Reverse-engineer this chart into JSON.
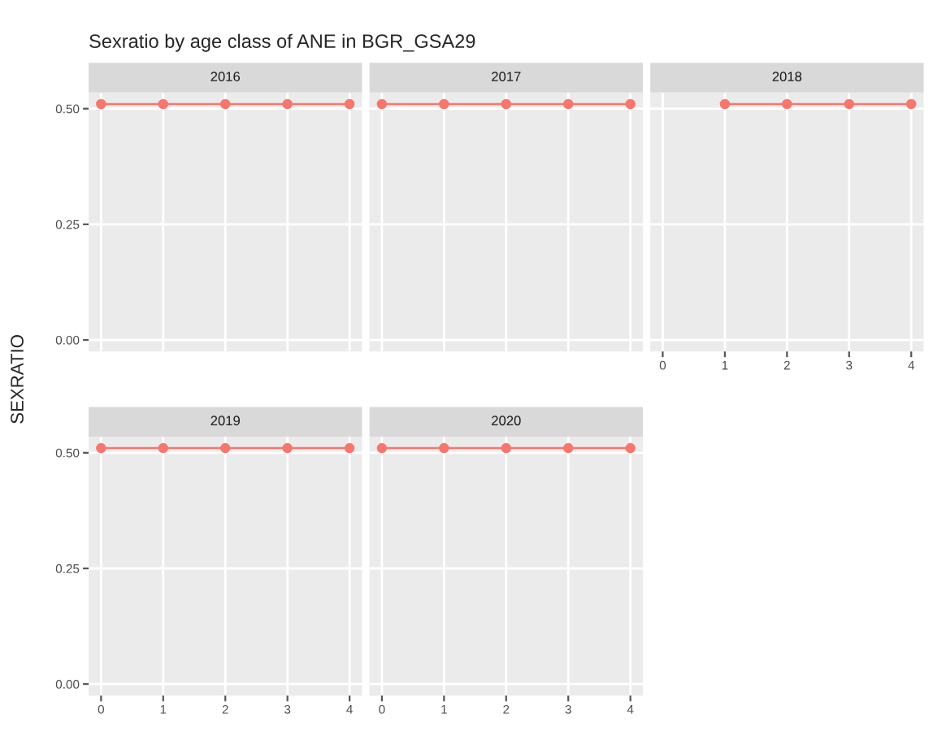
{
  "chart_data": [
    {
      "type": "line",
      "title": "Sexratio by age class of ANE in BGR_GSA29",
      "subtitle": "2016",
      "ylabel": "SEXRATIO",
      "x": [
        0,
        1,
        2,
        3,
        4
      ],
      "series": [
        {
          "color": "#f8766d",
          "values": [
            0.51,
            0.51,
            0.51,
            0.51,
            0.51
          ]
        }
      ],
      "xlim": [
        -0.2,
        4.2
      ],
      "ylim": [
        -0.025,
        0.535
      ],
      "xticks": [
        {
          "value": 0,
          "label": null
        },
        {
          "value": 1,
          "label": null
        },
        {
          "value": 2,
          "label": null
        },
        {
          "value": 3,
          "label": null
        },
        {
          "value": 4,
          "label": null
        }
      ],
      "yticks": [
        {
          "value": 0,
          "label": "0.00"
        },
        {
          "value": 0.25,
          "label": "0.25"
        },
        {
          "value": 0.5,
          "label": "0.50"
        }
      ],
      "tick_labels": "y",
      "grid": true,
      "marker": "circle",
      "line_style": "solid"
    },
    {
      "type": "line",
      "subtitle": "2017",
      "x": [
        0,
        1,
        2,
        3,
        4
      ],
      "series": [
        {
          "color": "#f8766d",
          "values": [
            0.51,
            0.51,
            0.51,
            0.51,
            0.51
          ]
        }
      ],
      "xlim": [
        -0.2,
        4.2
      ],
      "ylim": [
        -0.025,
        0.535
      ],
      "xticks": [
        {
          "value": 0,
          "label": null
        },
        {
          "value": 1,
          "label": null
        },
        {
          "value": 2,
          "label": null
        },
        {
          "value": 3,
          "label": null
        },
        {
          "value": 4,
          "label": null
        }
      ],
      "yticks": [
        {
          "value": 0,
          "label": null
        },
        {
          "value": 0.25,
          "label": null
        },
        {
          "value": 0.5,
          "label": null
        }
      ],
      "tick_labels": false,
      "grid": true,
      "marker": "circle",
      "line_style": "solid"
    },
    {
      "type": "line",
      "subtitle": "2018",
      "x": [
        1,
        2,
        3,
        4
      ],
      "series": [
        {
          "color": "#f8766d",
          "values": [
            0.51,
            0.51,
            0.51,
            0.51
          ]
        }
      ],
      "xlim": [
        -0.2,
        4.2
      ],
      "ylim": [
        -0.025,
        0.535
      ],
      "xticks": [
        0,
        1,
        2,
        3,
        4
      ],
      "yticks": [
        {
          "value": 0,
          "label": null
        },
        {
          "value": 0.25,
          "label": null
        },
        {
          "value": 0.5,
          "label": null
        }
      ],
      "tick_labels": "x",
      "grid": true,
      "marker": "circle",
      "line_style": "solid"
    },
    {
      "type": "line",
      "subtitle": "2019",
      "x": [
        0,
        1,
        2,
        3,
        4
      ],
      "series": [
        {
          "color": "#f8766d",
          "values": [
            0.51,
            0.51,
            0.51,
            0.51,
            0.51
          ]
        }
      ],
      "xlim": [
        -0.2,
        4.2
      ],
      "ylim": [
        -0.025,
        0.535
      ],
      "xticks": [
        0,
        1,
        2,
        3,
        4
      ],
      "yticks": [
        {
          "value": 0,
          "label": "0.00"
        },
        {
          "value": 0.25,
          "label": "0.25"
        },
        {
          "value": 0.5,
          "label": "0.50"
        }
      ],
      "grid": true,
      "marker": "circle",
      "line_style": "solid"
    },
    {
      "type": "line",
      "subtitle": "2020",
      "x": [
        0,
        1,
        2,
        3,
        4
      ],
      "series": [
        {
          "color": "#f8766d",
          "values": [
            0.51,
            0.51,
            0.51,
            0.51,
            0.51
          ]
        }
      ],
      "xlim": [
        -0.2,
        4.2
      ],
      "ylim": [
        -0.025,
        0.535
      ],
      "xticks": [
        0,
        1,
        2,
        3,
        4
      ],
      "yticks": [
        {
          "value": 0,
          "label": null
        },
        {
          "value": 0.25,
          "label": null
        },
        {
          "value": 0.5,
          "label": null
        }
      ],
      "tick_labels": "x",
      "grid": true,
      "marker": "circle",
      "line_style": "solid"
    }
  ]
}
